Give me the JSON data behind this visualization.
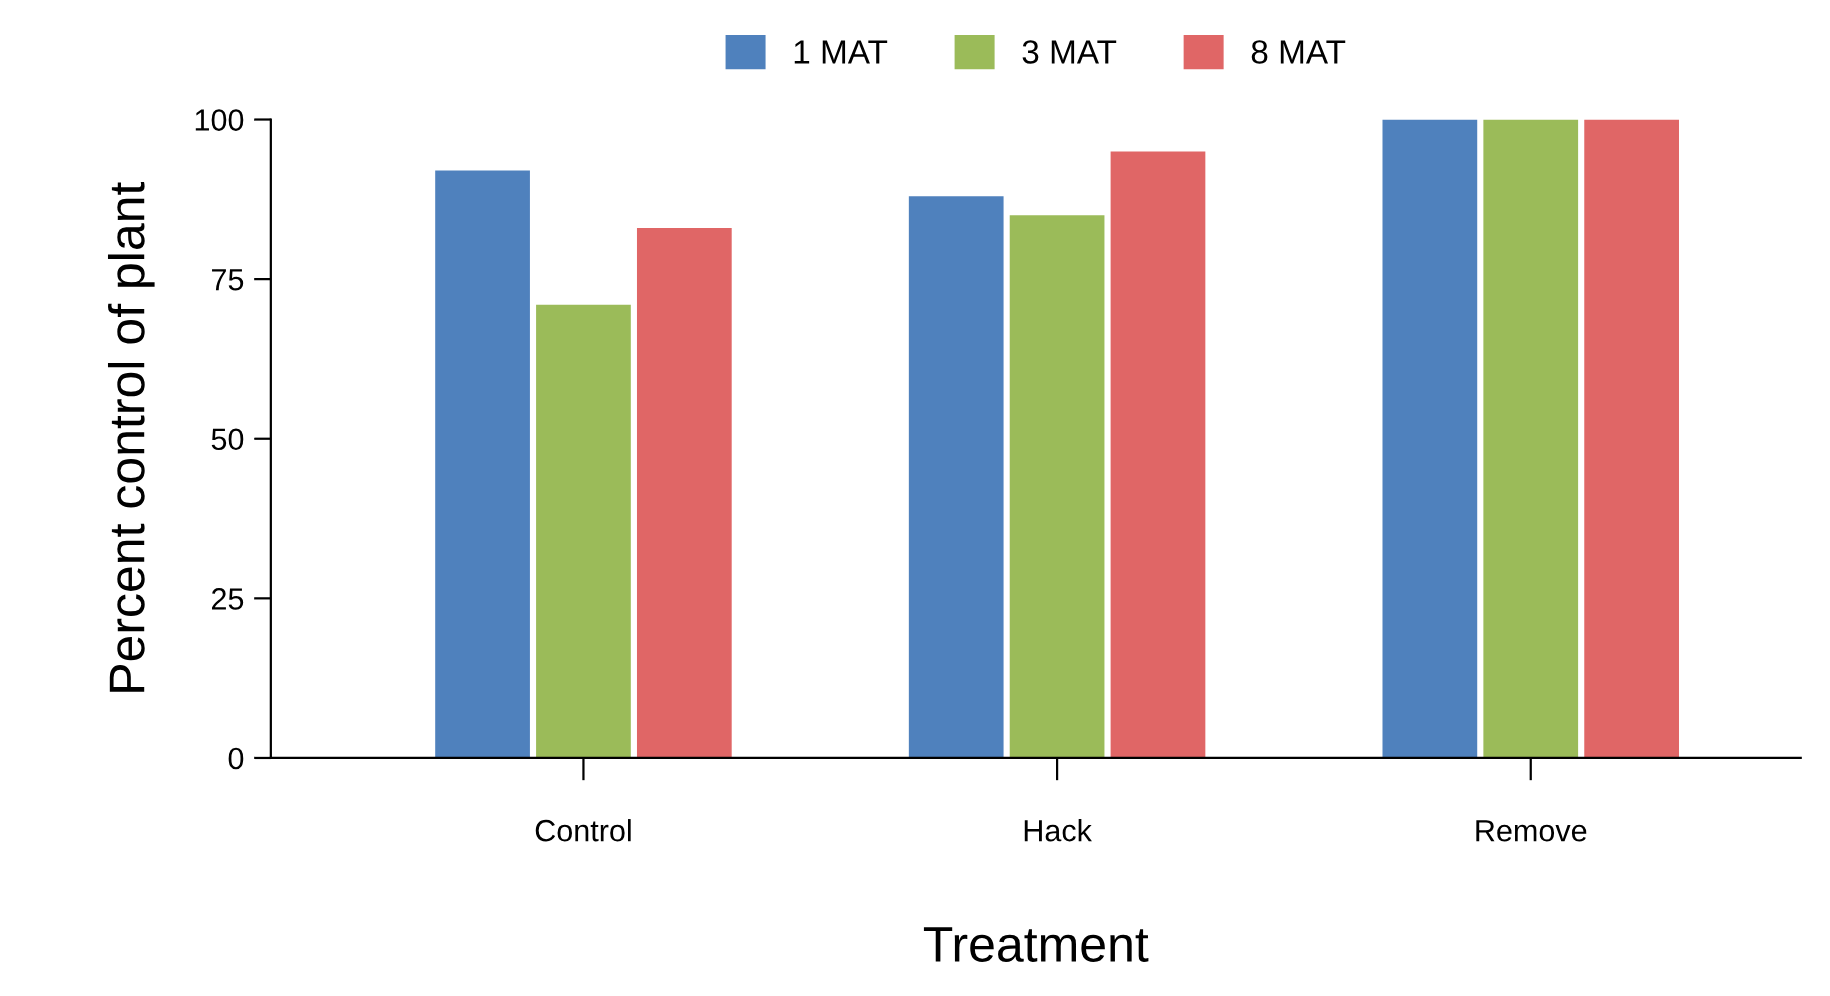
{
  "chart_data": {
    "type": "bar",
    "xlabel": "Treatment",
    "ylabel": "Percent control of plant",
    "categories": [
      "Control",
      "Hack",
      "Remove"
    ],
    "series": [
      {
        "name": "1 MAT",
        "color": "#4f81bd",
        "values": [
          92,
          88,
          100
        ]
      },
      {
        "name": "3 MAT",
        "color": "#9bbb59",
        "values": [
          71,
          85,
          100
        ]
      },
      {
        "name": "8 MAT",
        "color": "#e06666",
        "values": [
          83,
          95,
          100
        ]
      }
    ],
    "ylim": [
      0,
      100
    ],
    "yticks": [
      0,
      25,
      50,
      75,
      100
    ],
    "grid": false,
    "legend": "top"
  }
}
